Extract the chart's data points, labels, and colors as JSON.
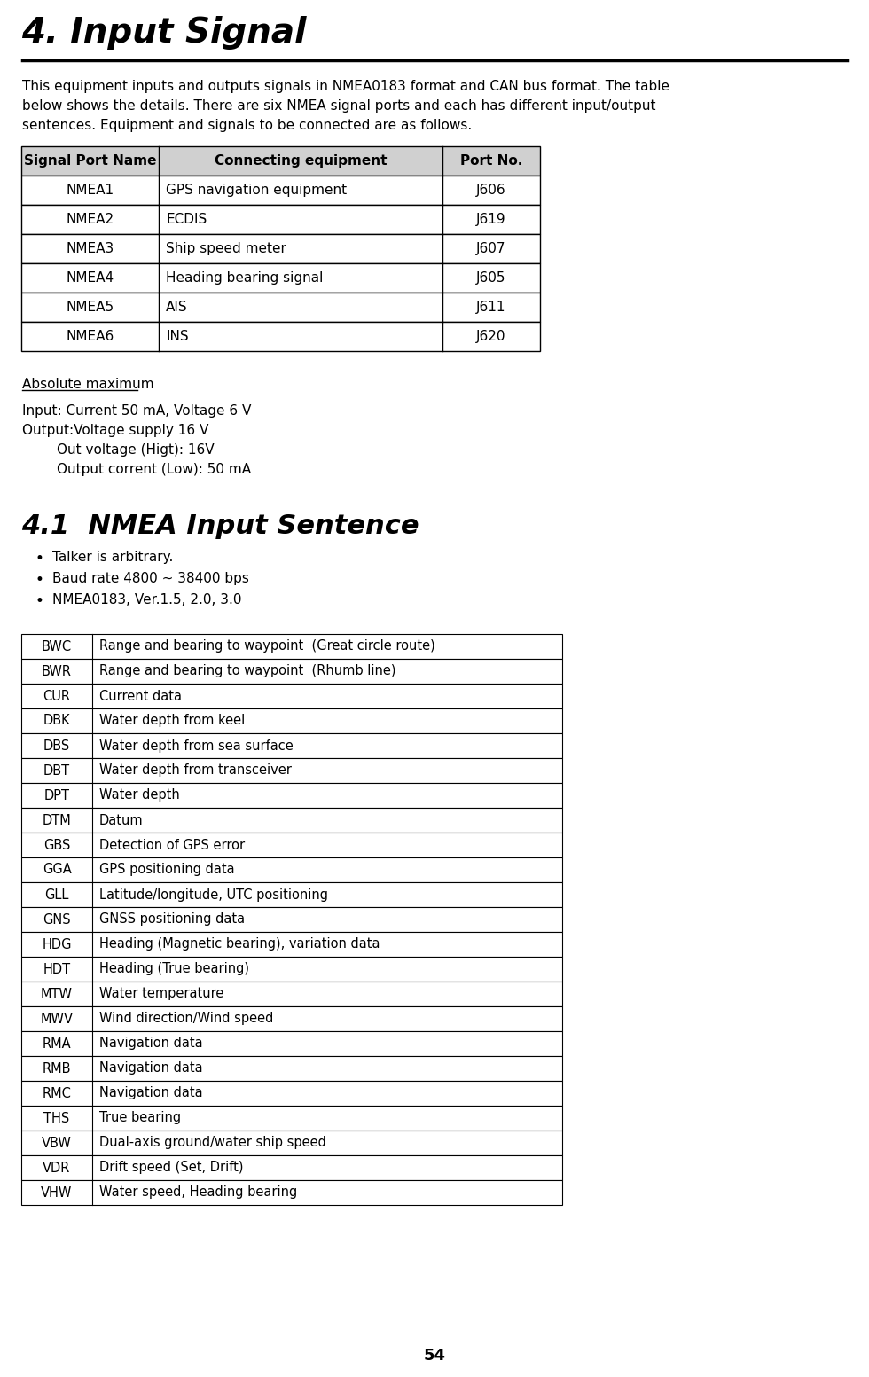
{
  "title": "4. Input Signal",
  "intro_text": "This equipment inputs and outputs signals in NMEA0183 format and CAN bus format. The table\nbelow shows the details. There are six NMEA signal ports and each has different input/output\nsentences. Equipment and signals to be connected are as follows.",
  "signal_table_headers": [
    "Signal Port Name",
    "Connecting equipment",
    "Port No."
  ],
  "signal_table_rows": [
    [
      "NMEA1",
      "GPS navigation equipment",
      "J606"
    ],
    [
      "NMEA2",
      "ECDIS",
      "J619"
    ],
    [
      "NMEA3",
      "Ship speed meter",
      "J607"
    ],
    [
      "NMEA4",
      "Heading bearing signal",
      "J605"
    ],
    [
      "NMEA5",
      "AIS",
      "J611"
    ],
    [
      "NMEA6",
      "INS",
      "J620"
    ]
  ],
  "abs_max_title": "Absolute maximum",
  "abs_max_lines": [
    "Input: Current 50 mA, Voltage 6 V",
    "Output:Voltage supply 16 V",
    "        Out voltage (Higt): 16V",
    "        Output corrent (Low): 50 mA"
  ],
  "section_title": "4.1  NMEA Input Sentence",
  "bullets": [
    "Talker is arbitrary.",
    "Baud rate 4800 ~ 38400 bps",
    "NMEA0183, Ver.1.5, 2.0, 3.0"
  ],
  "nmea_table_rows": [
    [
      "BWC",
      "Range and bearing to waypoint  (Great circle route)"
    ],
    [
      "BWR",
      "Range and bearing to waypoint  (Rhumb line)"
    ],
    [
      "CUR",
      "Current data"
    ],
    [
      "DBK",
      "Water depth from keel"
    ],
    [
      "DBS",
      "Water depth from sea surface"
    ],
    [
      "DBT",
      "Water depth from transceiver"
    ],
    [
      "DPT",
      "Water depth"
    ],
    [
      "DTM",
      "Datum"
    ],
    [
      "GBS",
      "Detection of GPS error"
    ],
    [
      "GGA",
      "GPS positioning data"
    ],
    [
      "GLL",
      "Latitude/longitude, UTC positioning"
    ],
    [
      "GNS",
      "GNSS positioning data"
    ],
    [
      "HDG",
      "Heading (Magnetic bearing), variation data"
    ],
    [
      "HDT",
      "Heading (True bearing)"
    ],
    [
      "MTW",
      "Water temperature"
    ],
    [
      "MWV",
      "Wind direction/Wind speed"
    ],
    [
      "RMA",
      "Navigation data"
    ],
    [
      "RMB",
      "Navigation data"
    ],
    [
      "RMC",
      "Navigation data"
    ],
    [
      "THS",
      "True bearing"
    ],
    [
      "VBW",
      "Dual-axis ground/water ship speed"
    ],
    [
      "VDR",
      "Drift speed (Set, Drift)"
    ],
    [
      "VHW",
      "Water speed, Heading bearing"
    ]
  ],
  "page_number": "54",
  "bg_color": "#ffffff",
  "text_color": "#000000"
}
